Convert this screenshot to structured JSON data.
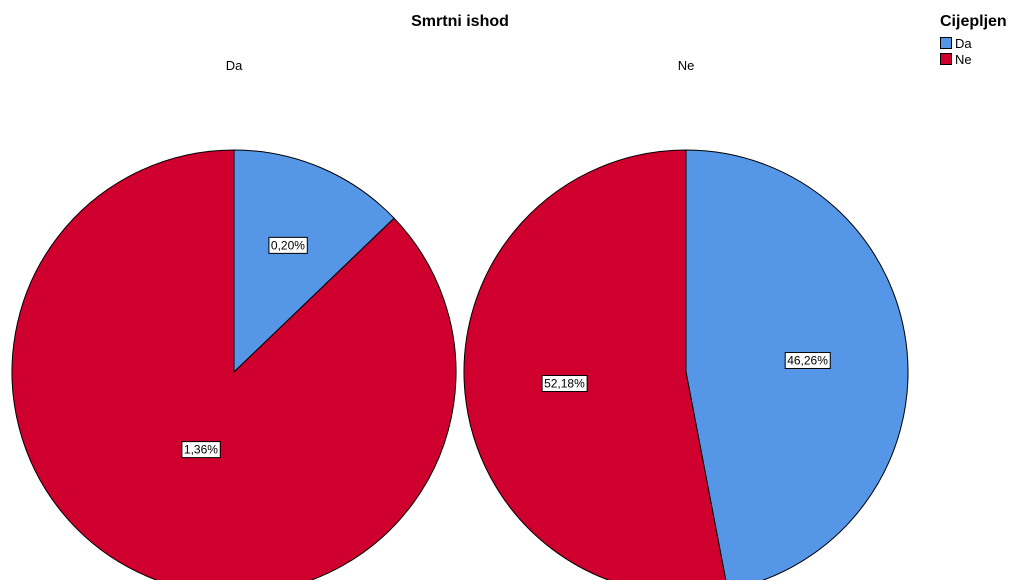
{
  "chart_data": {
    "type": "pie",
    "title": "Smrtni ishod",
    "legend": {
      "title": "Cijepljen",
      "placement": "top-right",
      "entries": [
        {
          "name": "Da",
          "color": "#5596E6"
        },
        {
          "name": "Ne",
          "color": "#D0002E"
        }
      ]
    },
    "panels": [
      {
        "label": "Da",
        "slices": [
          {
            "category": "Da",
            "value": 0.2,
            "label": "0,20%"
          },
          {
            "category": "Ne",
            "value": 1.36,
            "label": "1,36%"
          }
        ]
      },
      {
        "label": "Ne",
        "slices": [
          {
            "category": "Da",
            "value": 46.26,
            "label": "46,26%"
          },
          {
            "category": "Ne",
            "value": 52.18,
            "label": "52,18%"
          }
        ]
      }
    ]
  }
}
